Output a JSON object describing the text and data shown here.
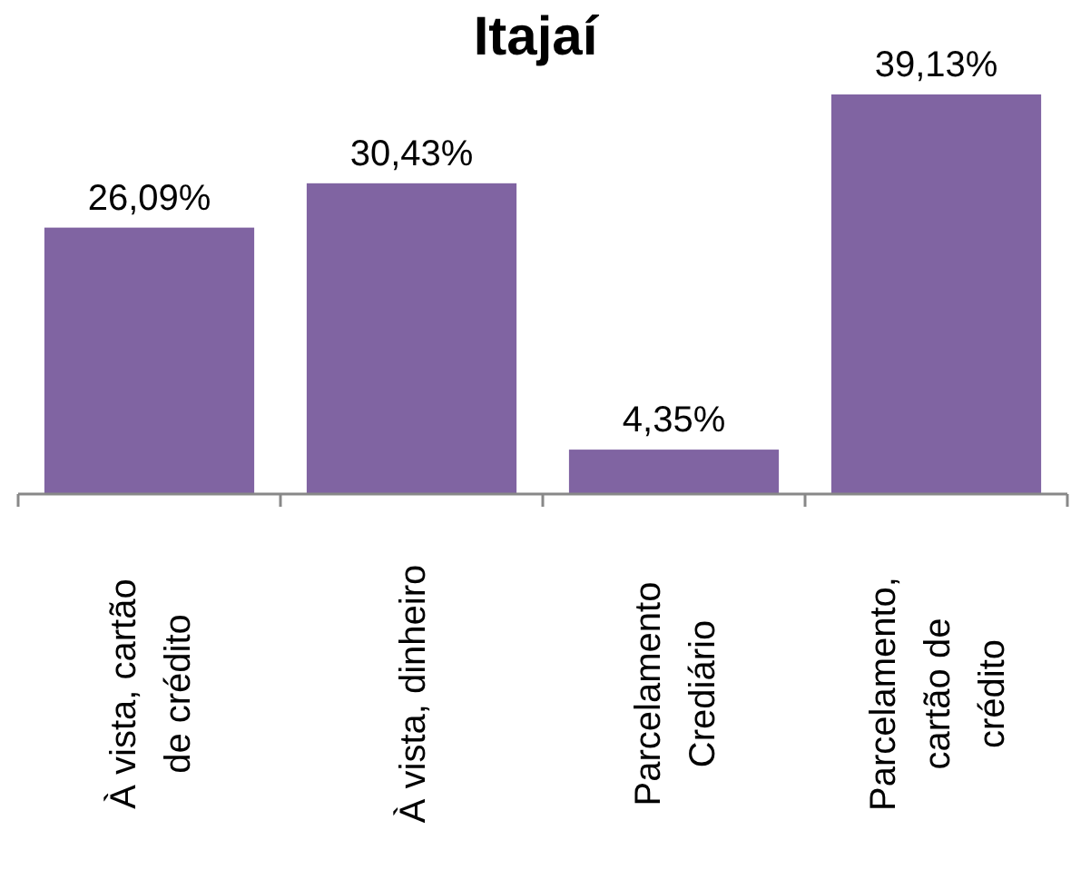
{
  "chart_data": {
    "type": "bar",
    "title": "Itajaí",
    "categories": [
      "À vista, cartão\nde crédito",
      "À vista, dinheiro",
      "Parcelamento\nCrediário",
      "Parcelamento,\ncartão de\ncrédito"
    ],
    "values": [
      26.09,
      30.43,
      4.35,
      39.13
    ],
    "color": "#8064a2",
    "value_labels": [
      "26,09%",
      "30,43%",
      "4,35%",
      "39,13%"
    ]
  }
}
